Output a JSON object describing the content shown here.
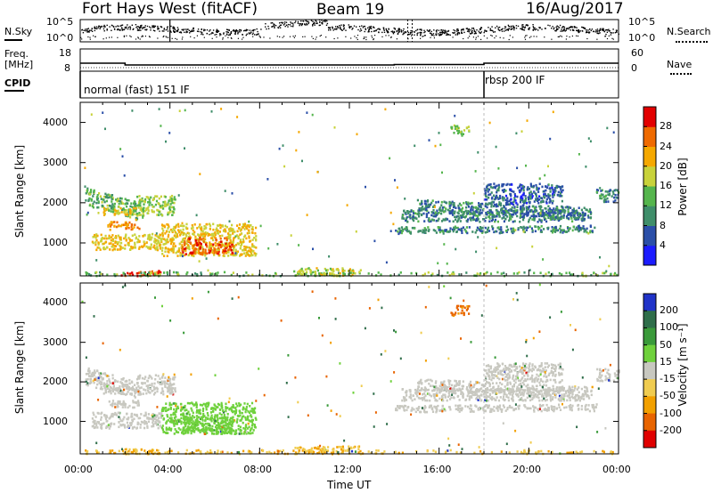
{
  "header": {
    "station": "Fort Hays West (fitACF)",
    "beam": "Beam 19",
    "date": "16/Aug/2017"
  },
  "strips": {
    "nsky_label": "N.Sky",
    "nsky_ticks": [
      "10^5",
      "10^0"
    ],
    "nsearch_label": "N.Search",
    "nsearch_ticks": [
      "10^5",
      "10^0"
    ],
    "freq_label_1": "Freq.",
    "freq_label_2": "[MHz]",
    "freq_ticks": [
      "18",
      "8"
    ],
    "nave_label": "Nave",
    "nave_ticks": [
      "60",
      "0"
    ],
    "cpid_label": "CPID",
    "cpid_modes": [
      "normal (fast) 151 IF",
      "rbsp 200 IF"
    ]
  },
  "chart_data": [
    {
      "type": "heatmap",
      "name": "power",
      "ylabel": "Slant Range [km]",
      "xlabel": "",
      "ylim": [
        180,
        4500
      ],
      "xlim_hours": [
        0,
        24
      ],
      "y_ticks": [
        "1000",
        "2000",
        "3000",
        "4000"
      ],
      "colorbar_label": "Power [dB]",
      "colorbar_ticks": [
        "4",
        "8",
        "12",
        "16",
        "20",
        "24",
        "28"
      ],
      "colorbar_colors": [
        "#1c1cff",
        "#2b4fa8",
        "#3f8e6a",
        "#55b54d",
        "#c8d23a",
        "#f5a800",
        "#ef6a00",
        "#e20000"
      ],
      "colorbar_range": [
        0,
        32
      ]
    },
    {
      "type": "heatmap",
      "name": "velocity",
      "ylabel": "Slant Range [km]",
      "xlabel": "Time UT",
      "ylim": [
        180,
        4500
      ],
      "xlim_hours": [
        0,
        24
      ],
      "y_ticks": [
        "1000",
        "2000",
        "3000",
        "4000"
      ],
      "x_ticks": [
        "00:00",
        "04:00",
        "08:00",
        "12:00",
        "16:00",
        "20:00",
        "00:00"
      ],
      "colorbar_label": "Velocity [m s⁻¹]",
      "colorbar_ticks": [
        "200",
        "100",
        "50",
        "15",
        "-15",
        "-50",
        "-100",
        "-200"
      ],
      "colorbar_colors": [
        "#2033c8",
        "#2f6e4a",
        "#3a9a3a",
        "#6fd13c",
        "#c8c8c0",
        "#f0cc50",
        "#f2a000",
        "#e86400",
        "#e00000"
      ]
    }
  ]
}
